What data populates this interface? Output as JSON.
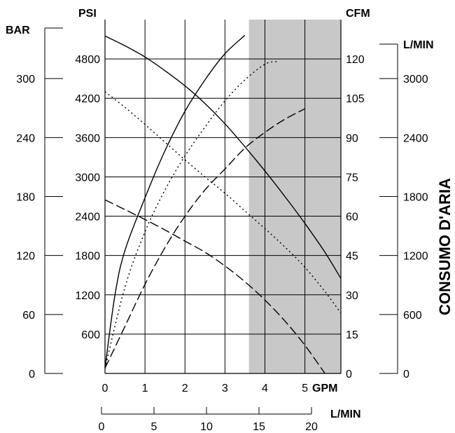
{
  "chart_data": {
    "type": "line",
    "units": {
      "bar": "BAR",
      "psi": "PSI",
      "cfm": "CFM",
      "lmin_right": "L/MIN",
      "gpm": "GPM",
      "lmin_bottom": "L/MIN"
    },
    "side_label": "CONSUMO D'ARIA",
    "axes": {
      "gpm": {
        "range": [
          0,
          5.9
        ],
        "ticks": [
          0,
          1,
          2,
          3,
          4,
          5
        ]
      },
      "lmin_bottom": {
        "range": [
          0,
          20
        ],
        "ticks": [
          0,
          5,
          10,
          15,
          20
        ]
      },
      "psi": {
        "range": [
          0,
          5400
        ],
        "ticks": [
          600,
          1200,
          1800,
          2400,
          3000,
          3600,
          4200,
          4800
        ]
      },
      "bar": {
        "range": [
          0,
          360
        ],
        "ticks": [
          0,
          60,
          120,
          180,
          240,
          300
        ]
      },
      "cfm": {
        "range": [
          0,
          135
        ],
        "ticks": [
          0,
          15,
          30,
          45,
          60,
          75,
          90,
          105,
          120
        ]
      },
      "lmin_right": {
        "range": [
          0,
          3600
        ],
        "ticks": [
          0,
          600,
          1200,
          1800,
          2400,
          3000
        ]
      }
    },
    "grid": true,
    "shaded_region": {
      "x_from": 3.6,
      "x_to": 5.9
    },
    "series": [
      {
        "style": "solid",
        "axis": "psi",
        "x": [
          0,
          0.5,
          1,
          1.5,
          2,
          2.5,
          3,
          3.5,
          4,
          4.5,
          5,
          5.5,
          5.9
        ],
        "y": [
          5150,
          5000,
          4830,
          4620,
          4390,
          4120,
          3810,
          3460,
          3090,
          2700,
          2290,
          1850,
          1450
        ]
      },
      {
        "style": "dotted",
        "axis": "psi",
        "x": [
          0,
          0.5,
          1,
          1.5,
          2,
          2.5,
          3,
          3.5,
          4,
          4.5,
          5,
          5.5,
          5.9
        ],
        "y": [
          4300,
          4060,
          3800,
          3530,
          3260,
          3000,
          2750,
          2480,
          2210,
          1930,
          1620,
          1250,
          920
        ]
      },
      {
        "style": "dashed",
        "axis": "psi",
        "x": [
          0,
          0.5,
          1,
          1.5,
          2,
          2.5,
          3,
          3.5,
          4,
          4.5,
          5,
          5.5
        ],
        "y": [
          2650,
          2500,
          2350,
          2190,
          2020,
          1850,
          1640,
          1400,
          1120,
          800,
          430,
          0
        ]
      },
      {
        "style": "solid",
        "axis": "cfm",
        "x": [
          0,
          0.25,
          0.5,
          1,
          1.5,
          2,
          2.5,
          3,
          3.5
        ],
        "y": [
          2,
          30,
          47,
          67,
          85,
          100,
          112,
          122,
          129
        ]
      },
      {
        "style": "dotted",
        "axis": "cfm",
        "x": [
          0,
          0.5,
          1,
          1.5,
          2,
          2.5,
          3,
          3.5,
          4,
          4.3
        ],
        "y": [
          2,
          33,
          54,
          70,
          83,
          94,
          104,
          112,
          118,
          119
        ]
      },
      {
        "style": "dashed",
        "axis": "cfm",
        "x": [
          0,
          0.5,
          1,
          1.5,
          2,
          2.5,
          3,
          3.5,
          4,
          4.5,
          5
        ],
        "y": [
          2,
          18,
          34,
          48,
          60,
          70,
          78,
          86,
          92,
          97,
          101
        ]
      }
    ]
  }
}
